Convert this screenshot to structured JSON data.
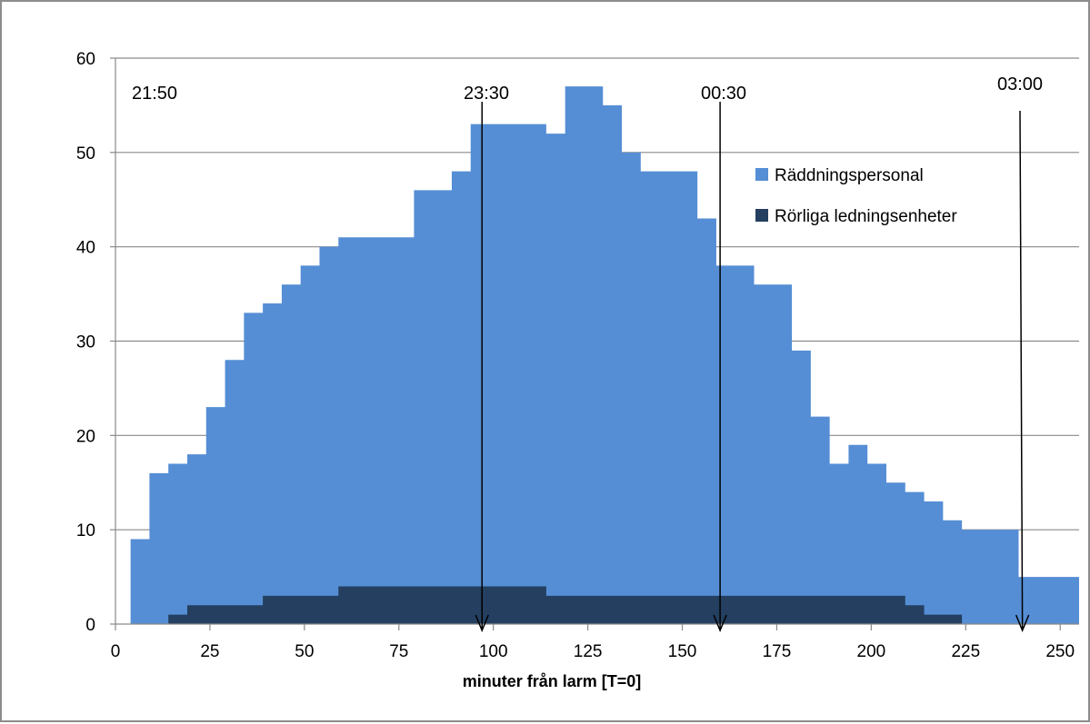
{
  "chart_data": {
    "type": "area",
    "title": "",
    "xlabel": "minuter från larm [T=0]",
    "ylabel": "",
    "xlim": [
      0,
      255
    ],
    "ylim": [
      0,
      60
    ],
    "x_ticks": [
      "0",
      "25",
      "50",
      "75",
      "100",
      "125",
      "150",
      "175",
      "200",
      "225",
      "250"
    ],
    "y_ticks": [
      "0",
      "10",
      "20",
      "30",
      "40",
      "50",
      "60"
    ],
    "grid": "horizontal",
    "legend_position": "top-right",
    "series": [
      {
        "name": "Räddningspersonal",
        "color": "#558ed5",
        "steps": [
          [
            4,
            9
          ],
          [
            9,
            16
          ],
          [
            14,
            17
          ],
          [
            19,
            18
          ],
          [
            24,
            23
          ],
          [
            29,
            28
          ],
          [
            34,
            33
          ],
          [
            39,
            34
          ],
          [
            44,
            36
          ],
          [
            49,
            38
          ],
          [
            54,
            40
          ],
          [
            59,
            41
          ],
          [
            79,
            46
          ],
          [
            89,
            48
          ],
          [
            94,
            53
          ],
          [
            114,
            52
          ],
          [
            119,
            57
          ],
          [
            129,
            55
          ],
          [
            134,
            50
          ],
          [
            139,
            48
          ],
          [
            154,
            43
          ],
          [
            159,
            38
          ],
          [
            169,
            36
          ],
          [
            179,
            29
          ],
          [
            184,
            22
          ],
          [
            189,
            17
          ],
          [
            194,
            19
          ],
          [
            199,
            17
          ],
          [
            204,
            15
          ],
          [
            209,
            14
          ],
          [
            214,
            13
          ],
          [
            219,
            11
          ],
          [
            224,
            10
          ],
          [
            239,
            5
          ],
          [
            255,
            5
          ]
        ]
      },
      {
        "name": "Rörliga ledningsenheter",
        "color": "#243f60",
        "steps": [
          [
            14,
            1
          ],
          [
            19,
            2
          ],
          [
            39,
            3
          ],
          [
            59,
            4
          ],
          [
            114,
            3
          ],
          [
            209,
            2
          ],
          [
            214,
            1
          ],
          [
            224,
            0
          ]
        ]
      }
    ],
    "annotations": [
      {
        "label": "21:50",
        "x": 0
      },
      {
        "label": "23:30",
        "x": 97
      },
      {
        "label": "00:30",
        "x": 160
      },
      {
        "label": "03:00",
        "x": 240
      }
    ]
  }
}
